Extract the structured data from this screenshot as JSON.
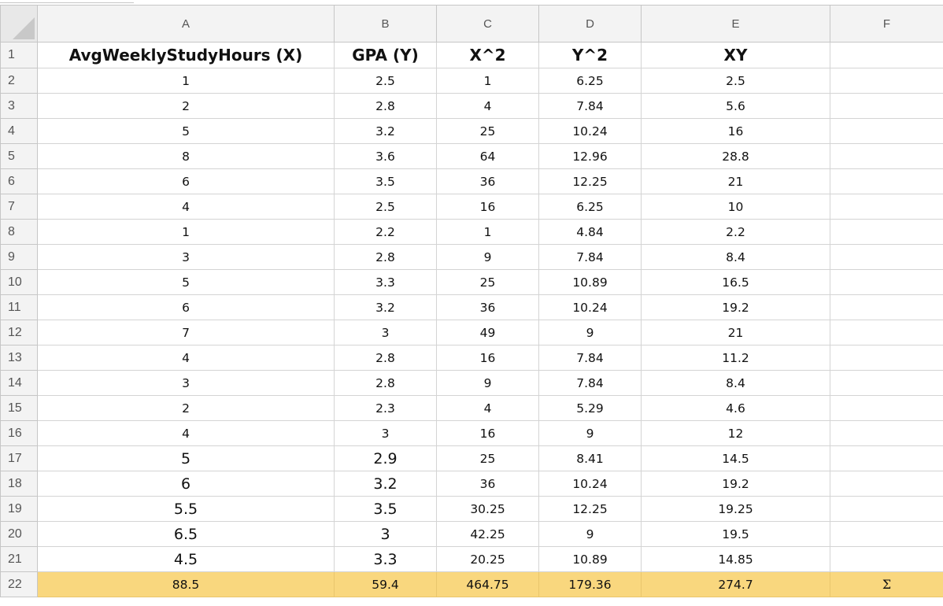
{
  "columns": [
    "A",
    "B",
    "C",
    "D",
    "E",
    "F"
  ],
  "row_numbers": [
    "1",
    "2",
    "3",
    "4",
    "5",
    "6",
    "7",
    "8",
    "9",
    "10",
    "11",
    "12",
    "13",
    "14",
    "15",
    "16",
    "17",
    "18",
    "19",
    "20",
    "21",
    "22"
  ],
  "headers": {
    "a": "AvgWeeklyStudyHours (X)",
    "b": "GPA (Y)",
    "c": "X^2",
    "d": "Y^2",
    "e": "XY",
    "f": ""
  },
  "rows": [
    [
      "1",
      "2.5",
      "1",
      "6.25",
      "2.5"
    ],
    [
      "2",
      "2.8",
      "4",
      "7.84",
      "5.6"
    ],
    [
      "5",
      "3.2",
      "25",
      "10.24",
      "16"
    ],
    [
      "8",
      "3.6",
      "64",
      "12.96",
      "28.8"
    ],
    [
      "6",
      "3.5",
      "36",
      "12.25",
      "21"
    ],
    [
      "4",
      "2.5",
      "16",
      "6.25",
      "10"
    ],
    [
      "1",
      "2.2",
      "1",
      "4.84",
      "2.2"
    ],
    [
      "3",
      "2.8",
      "9",
      "7.84",
      "8.4"
    ],
    [
      "5",
      "3.3",
      "25",
      "10.89",
      "16.5"
    ],
    [
      "6",
      "3.2",
      "36",
      "10.24",
      "19.2"
    ],
    [
      "7",
      "3",
      "49",
      "9",
      "21"
    ],
    [
      "4",
      "2.8",
      "16",
      "7.84",
      "11.2"
    ],
    [
      "3",
      "2.8",
      "9",
      "7.84",
      "8.4"
    ],
    [
      "2",
      "2.3",
      "4",
      "5.29",
      "4.6"
    ],
    [
      "4",
      "3",
      "16",
      "9",
      "12"
    ],
    [
      "5",
      "2.9",
      "25",
      "8.41",
      "14.5"
    ],
    [
      "6",
      "3.2",
      "36",
      "10.24",
      "19.2"
    ],
    [
      "5.5",
      "3.5",
      "30.25",
      "12.25",
      "19.25"
    ],
    [
      "6.5",
      "3",
      "42.25",
      "9",
      "19.5"
    ],
    [
      "4.5",
      "3.3",
      "20.25",
      "10.89",
      "14.85"
    ]
  ],
  "totals": {
    "a": "88.5",
    "b": "59.4",
    "c": "464.75",
    "d": "179.36",
    "e": "274.7",
    "f": "Σ"
  },
  "colors": {
    "sum_row_fill": "#f9d77e",
    "header_fill": "#f3f3f3",
    "grid_line": "#d4d4d4"
  }
}
